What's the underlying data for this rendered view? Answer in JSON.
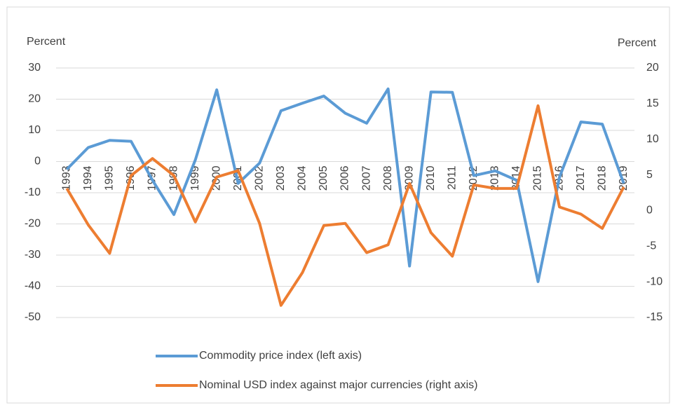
{
  "chart_data": {
    "type": "line",
    "y_label": "Percent",
    "y2_label": "Percent",
    "categories": [
      "1993",
      "1994",
      "1995",
      "1996",
      "1997",
      "1998",
      "1999",
      "2000",
      "2001",
      "2002",
      "2003",
      "2004",
      "2005",
      "2006",
      "2007",
      "2008",
      "2009",
      "2010",
      "2011",
      "2012",
      "2013",
      "2014",
      "2015",
      "2016",
      "2017",
      "2018",
      "2019"
    ],
    "series": [
      {
        "name": "Commodity price index (left axis)",
        "color": "#5b9bd5",
        "axis": "y",
        "values": [
          -2.5,
          4.5,
          6.8,
          6.5,
          -6,
          -17,
          0.5,
          23,
          -7,
          -0.5,
          16.3,
          18.7,
          21,
          15.5,
          12.3,
          23.3,
          -33.5,
          22.3,
          22.2,
          -4.5,
          -3,
          -6,
          -38.5,
          -5,
          12.7,
          12,
          -7
        ]
      },
      {
        "name": "Nominal USD index against major currencies (right axis)",
        "color": "#ed7d31",
        "axis": "y2",
        "values": [
          3.1,
          -2,
          -6,
          4.9,
          7.3,
          4.9,
          -1.6,
          4.7,
          5.6,
          -1.8,
          -13.3,
          -8.7,
          -2.1,
          -1.8,
          -5.9,
          -4.8,
          3.8,
          -3.1,
          -6.4,
          3.6,
          3.1,
          3.1,
          14.7,
          0.5,
          -0.5,
          -2.5,
          3.3
        ]
      }
    ],
    "ylim": [
      -50,
      30
    ],
    "yticks": [
      -50,
      -40,
      -30,
      -20,
      -10,
      0,
      10,
      20,
      30
    ],
    "y2lim": [
      -15,
      20
    ],
    "y2ticks": [
      -15,
      -10,
      -5,
      0,
      5,
      10,
      15,
      20
    ],
    "grid": true,
    "legend": "bottom"
  }
}
